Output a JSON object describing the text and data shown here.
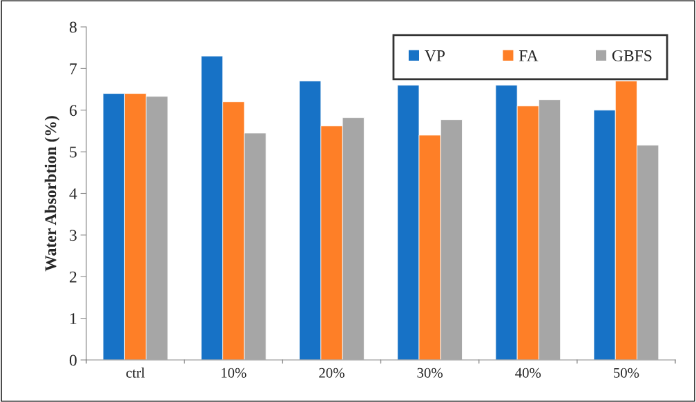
{
  "chart_data": {
    "type": "bar",
    "ylabel": "Water Absorbtion (%)",
    "categories": [
      "ctrl",
      "10%",
      "20%",
      "30%",
      "40%",
      "50%"
    ],
    "series": [
      {
        "name": "VP",
        "color": "#1772c6",
        "values": [
          6.4,
          7.3,
          6.7,
          6.6,
          6.6,
          6.0
        ]
      },
      {
        "name": "FA",
        "color": "#fe7f27",
        "values": [
          6.4,
          6.2,
          5.62,
          5.4,
          6.1,
          6.7
        ]
      },
      {
        "name": "GBFS",
        "color": "#a6a6a6",
        "values": [
          6.33,
          5.45,
          5.82,
          5.77,
          6.25,
          5.16
        ]
      }
    ],
    "ylim": [
      0,
      8
    ],
    "yticks": [
      0,
      1,
      2,
      3,
      4,
      5,
      6,
      7,
      8
    ],
    "grid": false,
    "legend": "top right"
  }
}
